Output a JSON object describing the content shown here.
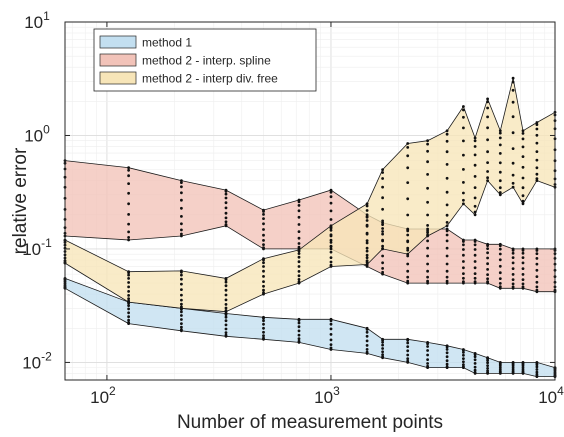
{
  "chart_data": {
    "type": "area",
    "xlabel": "Number of measurement points",
    "ylabel": "relative error",
    "x_scale": "log",
    "y_scale": "log",
    "xlim": [
      65,
      10000
    ],
    "ylim": [
      0.007,
      10
    ],
    "grid": true,
    "legend_position": "top-left",
    "x_ticks": [
      {
        "value": 100,
        "base": "10",
        "exp": "2"
      },
      {
        "value": 1000,
        "base": "10",
        "exp": "3"
      },
      {
        "value": 10000,
        "base": "10",
        "exp": "4"
      }
    ],
    "y_ticks": [
      {
        "value": 0.01,
        "base": "10",
        "exp": "-2"
      },
      {
        "value": 0.1,
        "base": "10",
        "exp": "-1"
      },
      {
        "value": 1,
        "base": "10",
        "exp": "0"
      },
      {
        "value": 10,
        "base": "10",
        "exp": "1"
      }
    ],
    "x": [
      65,
      125,
      215,
      340,
      500,
      720,
      1000,
      1450,
      1700,
      2200,
      2700,
      3300,
      3900,
      4400,
      5000,
      5700,
      6500,
      7200,
      8300,
      10000
    ],
    "series": [
      {
        "name": "method 1",
        "color": "#c3dff0",
        "upper": [
          0.055,
          0.034,
          0.03,
          0.027,
          0.025,
          0.024,
          0.024,
          0.02,
          0.016,
          0.016,
          0.015,
          0.014,
          0.013,
          0.012,
          0.011,
          0.01,
          0.01,
          0.01,
          0.01,
          0.009
        ],
        "lower": [
          0.045,
          0.022,
          0.019,
          0.017,
          0.016,
          0.015,
          0.013,
          0.012,
          0.011,
          0.01,
          0.009,
          0.009,
          0.009,
          0.008,
          0.008,
          0.008,
          0.008,
          0.008,
          0.0075,
          0.0075
        ],
        "points_per_x": 9
      },
      {
        "name": "method 2 - interp. spline",
        "color": "#f2c3b9",
        "upper": [
          0.6,
          0.52,
          0.4,
          0.33,
          0.22,
          0.27,
          0.33,
          0.2,
          0.17,
          0.15,
          0.15,
          0.15,
          0.12,
          0.12,
          0.11,
          0.11,
          0.1,
          0.1,
          0.1,
          0.1
        ],
        "lower": [
          0.13,
          0.12,
          0.13,
          0.16,
          0.1,
          0.1,
          0.1,
          0.07,
          0.06,
          0.05,
          0.05,
          0.05,
          0.05,
          0.05,
          0.05,
          0.045,
          0.045,
          0.045,
          0.042,
          0.042
        ],
        "points_per_x": 11
      },
      {
        "name": "method 2 - interp div. free",
        "color": "#f7e5b8",
        "upper": [
          0.12,
          0.063,
          0.064,
          0.055,
          0.082,
          0.098,
          0.16,
          0.25,
          0.5,
          0.85,
          0.9,
          1.1,
          1.8,
          0.95,
          2.1,
          1.1,
          3.2,
          1.1,
          1.3,
          1.6
        ],
        "lower": [
          0.075,
          0.034,
          0.03,
          0.028,
          0.04,
          0.05,
          0.07,
          0.073,
          0.1,
          0.09,
          0.13,
          0.16,
          0.25,
          0.2,
          0.4,
          0.3,
          0.35,
          0.25,
          0.4,
          0.35
        ],
        "points_per_x": 11
      }
    ]
  }
}
